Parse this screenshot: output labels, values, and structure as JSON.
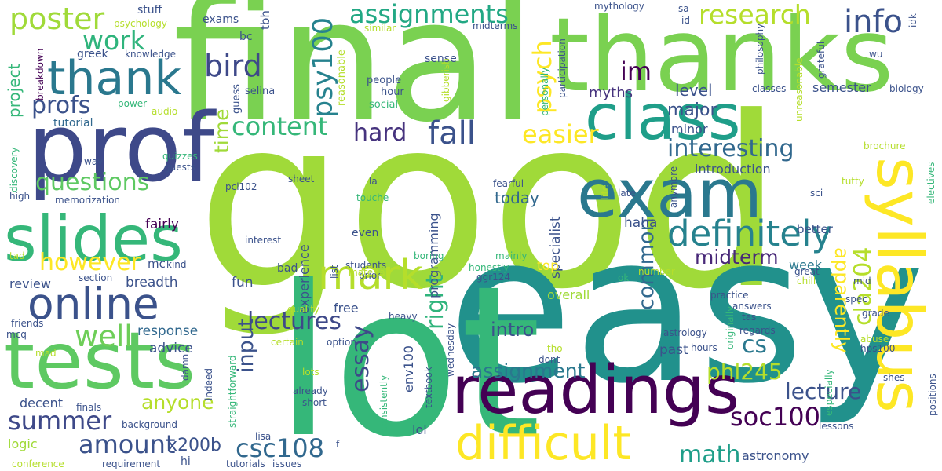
{
  "words": [
    {
      "text": "good",
      "color": "#a0da39"
    },
    {
      "text": "easy",
      "color": "#21918c"
    },
    {
      "text": "final",
      "color": "#7ad151"
    },
    {
      "text": "lot",
      "color": "#35b779"
    },
    {
      "text": "thanks",
      "color": "#7ad151"
    },
    {
      "text": "prof",
      "color": "#3e4989"
    },
    {
      "text": "tests",
      "color": "#5ec962"
    },
    {
      "text": "readings",
      "color": "#440154"
    },
    {
      "text": "class",
      "color": "#1f9e89"
    },
    {
      "text": "exam",
      "color": "#2a788e"
    },
    {
      "text": "slides",
      "color": "#35b779"
    },
    {
      "text": "syllabus",
      "color": "#fde725"
    },
    {
      "text": "thank",
      "color": "#2a788e"
    },
    {
      "text": "difficult",
      "color": "#fde725"
    },
    {
      "text": "online",
      "color": "#3b528b"
    },
    {
      "text": "mark",
      "color": "#b5de2b"
    },
    {
      "text": "definitely",
      "color": "#26828e"
    },
    {
      "text": "poster",
      "color": "#a0da39"
    },
    {
      "text": "assignments",
      "color": "#22a884"
    },
    {
      "text": "research",
      "color": "#b5de2b"
    },
    {
      "text": "info",
      "color": "#3b528b"
    },
    {
      "text": "work",
      "color": "#2fb47c"
    },
    {
      "text": "profs",
      "color": "#3b528b"
    },
    {
      "text": "bird",
      "color": "#3e4989"
    },
    {
      "text": "im",
      "color": "#440154"
    },
    {
      "text": "psy100",
      "color": "#26828e"
    },
    {
      "text": "psych",
      "color": "#fde725"
    },
    {
      "text": "content",
      "color": "#35b779"
    },
    {
      "text": "hard",
      "color": "#46337e"
    },
    {
      "text": "fall",
      "color": "#3b528b"
    },
    {
      "text": "easier",
      "color": "#fde725"
    },
    {
      "text": "interesting",
      "color": "#31688e"
    },
    {
      "text": "questions",
      "color": "#5ec962"
    },
    {
      "text": "however",
      "color": "#fde725"
    },
    {
      "text": "midterm",
      "color": "#482878"
    },
    {
      "text": "lectures",
      "color": "#3e4989"
    },
    {
      "text": "well",
      "color": "#6ece58"
    },
    {
      "text": "summer",
      "color": "#3e4989"
    },
    {
      "text": "amount",
      "color": "#3b528b"
    },
    {
      "text": "essay",
      "color": "#3e4989"
    },
    {
      "text": "csc108",
      "color": "#31688e"
    },
    {
      "text": "soc100",
      "color": "#440154"
    },
    {
      "text": "math",
      "color": "#1f9e89"
    },
    {
      "text": "cs",
      "color": "#2a788e"
    },
    {
      "text": "cla204",
      "color": "#b5de2b"
    },
    {
      "text": "apparently",
      "color": "#fde725"
    },
    {
      "text": "lecture",
      "color": "#3b528b"
    },
    {
      "text": "phl245",
      "color": "#b5de2b"
    },
    {
      "text": "common",
      "color": "#31688e"
    },
    {
      "text": "assignment",
      "color": "#2a788e"
    },
    {
      "text": "right",
      "color": "#2fb47c"
    },
    {
      "text": "input",
      "color": "#3b528b"
    },
    {
      "text": "time",
      "color": "#a0da39"
    },
    {
      "text": "anyone",
      "color": "#b5de2b"
    },
    {
      "text": "x200b",
      "color": "#3b528b"
    },
    {
      "text": "project",
      "color": "#35b779"
    },
    {
      "text": "major",
      "color": "#3b528b"
    },
    {
      "text": "level",
      "color": "#3b528b"
    },
    {
      "text": "intro",
      "color": "#3b528b"
    },
    {
      "text": "semester",
      "color": "#3b528b"
    },
    {
      "text": "myths",
      "color": "#46337e"
    },
    {
      "text": "introduction",
      "color": "#3b528b"
    },
    {
      "text": "minor",
      "color": "#3b528b"
    },
    {
      "text": "today",
      "color": "#31688e"
    },
    {
      "text": "haha",
      "color": "#3b528b"
    },
    {
      "text": "fairly",
      "color": "#440154"
    },
    {
      "text": "specialist",
      "color": "#3b528b"
    },
    {
      "text": "programming",
      "color": "#3b528b"
    },
    {
      "text": "experience",
      "color": "#3b528b"
    },
    {
      "text": "response",
      "color": "#31688e"
    },
    {
      "text": "advice",
      "color": "#3b528b"
    },
    {
      "text": "review",
      "color": "#3b528b"
    },
    {
      "text": "breadth",
      "color": "#3b528b"
    },
    {
      "text": "fun",
      "color": "#3b528b"
    },
    {
      "text": "overall",
      "color": "#a0da39"
    },
    {
      "text": "top",
      "color": "#fde725"
    },
    {
      "text": "past",
      "color": "#3b528b"
    },
    {
      "text": "week",
      "color": "#2a788e"
    },
    {
      "text": "better",
      "color": "#3b528b"
    },
    {
      "text": "free",
      "color": "#3b528b"
    },
    {
      "text": "lol",
      "color": "#3b528b"
    },
    {
      "text": "even",
      "color": "#3b528b"
    },
    {
      "text": "bad",
      "color": "#3b528b"
    },
    {
      "text": "env100",
      "color": "#3b528b"
    },
    {
      "text": "decent",
      "color": "#3b528b"
    },
    {
      "text": "logic",
      "color": "#a0da39"
    },
    {
      "text": "hi",
      "color": "#3b528b"
    },
    {
      "text": "astronomy",
      "color": "#3b528b"
    },
    {
      "text": "mc",
      "color": "#3b528b"
    },
    {
      "text": "exams",
      "color": "#3b528b"
    },
    {
      "text": "bc",
      "color": "#3b528b"
    },
    {
      "text": "stuff",
      "color": "#3b528b"
    },
    {
      "text": "tbh",
      "color": "#3b528b"
    },
    {
      "text": "greek",
      "color": "#3b528b"
    },
    {
      "text": "tutorial",
      "color": "#31688e"
    },
    {
      "text": "sense",
      "color": "#3b528b"
    },
    {
      "text": "people",
      "color": "#3b528b"
    },
    {
      "text": "hour",
      "color": "#3b528b"
    },
    {
      "text": "social",
      "color": "#35b779"
    },
    {
      "text": "selina",
      "color": "#3b528b"
    },
    {
      "text": "guess",
      "color": "#3b528b"
    },
    {
      "text": "reasonable",
      "color": "#b5de2b"
    },
    {
      "text": "similar",
      "color": "#b5de2b"
    },
    {
      "text": "psychology",
      "color": "#b5de2b"
    },
    {
      "text": "knowledge",
      "color": "#3b528b"
    },
    {
      "text": "power",
      "color": "#35b779"
    },
    {
      "text": "audio",
      "color": "#b5de2b"
    },
    {
      "text": "breakdown",
      "color": "#440154"
    },
    {
      "text": "discovery",
      "color": "#35b779"
    },
    {
      "text": "quizzes",
      "color": "#35b779"
    },
    {
      "text": "guests",
      "color": "#3b528b"
    },
    {
      "text": "way",
      "color": "#3b528b"
    },
    {
      "text": "high",
      "color": "#3b528b"
    },
    {
      "text": "memorization",
      "color": "#3b528b"
    },
    {
      "text": "pcl102",
      "color": "#3b528b"
    },
    {
      "text": "sheet",
      "color": "#3b528b"
    },
    {
      "text": "la",
      "color": "#3b528b"
    },
    {
      "text": "touche",
      "color": "#35b779"
    },
    {
      "text": "students",
      "color": "#3b528b"
    },
    {
      "text": "honestly",
      "color": "#35b779"
    },
    {
      "text": "mainly",
      "color": "#35b779"
    },
    {
      "text": "fearful",
      "color": "#3b528b"
    },
    {
      "text": "prior",
      "color": "#3b528b"
    },
    {
      "text": "ggr124",
      "color": "#3b528b"
    },
    {
      "text": "life",
      "color": "#b5de2b"
    },
    {
      "text": "late",
      "color": "#3b528b"
    },
    {
      "text": "ok",
      "color": "#35b779"
    },
    {
      "text": "interest",
      "color": "#3b528b"
    },
    {
      "text": "tad",
      "color": "#b5de2b"
    },
    {
      "text": "kind",
      "color": "#3b528b"
    },
    {
      "text": "section",
      "color": "#3b528b"
    },
    {
      "text": "list",
      "color": "#3b528b"
    },
    {
      "text": "boring",
      "color": "#35b779"
    },
    {
      "text": "material",
      "color": "#b5de2b"
    },
    {
      "text": "quality",
      "color": "#b5de2b"
    },
    {
      "text": "friends",
      "color": "#3b528b"
    },
    {
      "text": "mcq",
      "color": "#3b528b"
    },
    {
      "text": "mad",
      "color": "#b5de2b"
    },
    {
      "text": "damn",
      "color": "#3b528b"
    },
    {
      "text": "certain",
      "color": "#b5de2b"
    },
    {
      "text": "option",
      "color": "#3b528b"
    },
    {
      "text": "straightforward",
      "color": "#35b779"
    },
    {
      "text": "indeed",
      "color": "#3b528b"
    },
    {
      "text": "lots",
      "color": "#b5de2b"
    },
    {
      "text": "already",
      "color": "#3b528b"
    },
    {
      "text": "short",
      "color": "#3b528b"
    },
    {
      "text": "heavy",
      "color": "#3b528b"
    },
    {
      "text": "tho",
      "color": "#b5de2b"
    },
    {
      "text": "dont",
      "color": "#3b528b"
    },
    {
      "text": "wednesday",
      "color": "#3b528b"
    },
    {
      "text": "textbook",
      "color": "#3b528b"
    },
    {
      "text": "consistently",
      "color": "#35b779"
    },
    {
      "text": "finals",
      "color": "#3b528b"
    },
    {
      "text": "background",
      "color": "#3b528b"
    },
    {
      "text": "lisa",
      "color": "#3b528b"
    },
    {
      "text": "conference",
      "color": "#b5de2b"
    },
    {
      "text": "requirement",
      "color": "#3b528b"
    },
    {
      "text": "tutorials",
      "color": "#3b528b"
    },
    {
      "text": "issues",
      "color": "#3b528b"
    },
    {
      "text": "f",
      "color": "#3b528b"
    },
    {
      "text": "astrology",
      "color": "#3b528b"
    },
    {
      "text": "regards",
      "color": "#3b528b"
    },
    {
      "text": "abuse",
      "color": "#b5de2b"
    },
    {
      "text": "hps100",
      "color": "#3b528b"
    },
    {
      "text": "hours",
      "color": "#3b528b"
    },
    {
      "text": "originally",
      "color": "#35b779"
    },
    {
      "text": "shes",
      "color": "#3b528b"
    },
    {
      "text": "lessons",
      "color": "#3b528b"
    },
    {
      "text": "practice",
      "color": "#3b528b"
    },
    {
      "text": "answers",
      "color": "#3b528b"
    },
    {
      "text": "tas",
      "color": "#3b528b"
    },
    {
      "text": "grade",
      "color": "#3b528b"
    },
    {
      "text": "spec",
      "color": "#3b528b"
    },
    {
      "text": "mid",
      "color": "#3b528b"
    },
    {
      "text": "chill",
      "color": "#b5de2b"
    },
    {
      "text": "great",
      "color": "#3b528b"
    },
    {
      "text": "number",
      "color": "#b5de2b"
    },
    {
      "text": "positions",
      "color": "#3b528b"
    },
    {
      "text": "especially",
      "color": "#35b779"
    },
    {
      "text": "electives",
      "color": "#35b779"
    },
    {
      "text": "tutty",
      "color": "#b5de2b"
    },
    {
      "text": "sci",
      "color": "#3b528b"
    },
    {
      "text": "brochure",
      "color": "#b5de2b"
    },
    {
      "text": "anymore",
      "color": "#3b528b"
    },
    {
      "text": "unreasonable",
      "color": "#b5de2b"
    },
    {
      "text": "classes",
      "color": "#3b528b"
    },
    {
      "text": "biology",
      "color": "#3b528b"
    },
    {
      "text": "grateful",
      "color": "#3b528b"
    },
    {
      "text": "wu",
      "color": "#3b528b"
    },
    {
      "text": "philosophy",
      "color": "#3b528b"
    },
    {
      "text": "idk",
      "color": "#3b528b"
    },
    {
      "text": "sa",
      "color": "#3b528b"
    },
    {
      "text": "id",
      "color": "#3b528b"
    },
    {
      "text": "mythology",
      "color": "#3b528b"
    },
    {
      "text": "midterms",
      "color": "#3b528b"
    },
    {
      "text": "participation",
      "color": "#3b528b"
    },
    {
      "text": "personally",
      "color": "#35b779"
    },
    {
      "text": "gibberish",
      "color": "#b5de2b"
    }
  ]
}
